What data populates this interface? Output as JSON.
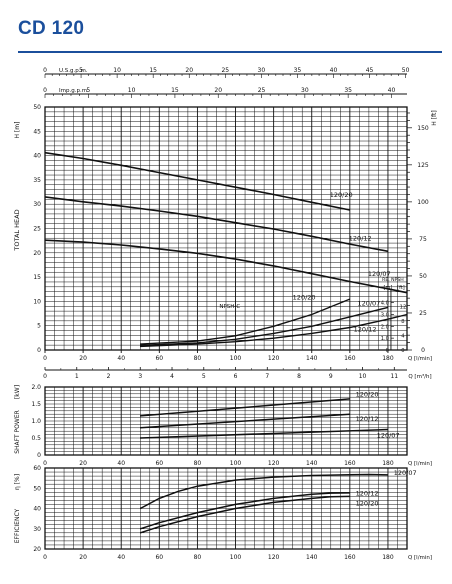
{
  "page": {
    "title": "CD 120"
  },
  "chart_data": [
    {
      "id": "head",
      "type": "line",
      "ylabel": "TOTAL HEAD",
      "yunit_left": "H [m]",
      "yunit_right": "H [ft]",
      "xlabel": "Q [l/min]",
      "xlim": [
        0,
        190
      ],
      "ylim": [
        0,
        50
      ],
      "x_ticks": [
        0,
        20,
        40,
        60,
        80,
        100,
        120,
        140,
        160,
        180
      ],
      "y_ticks": [
        0,
        5,
        10,
        15,
        20,
        25,
        30,
        35,
        40,
        45,
        50
      ],
      "grid": true,
      "right_axis": {
        "label": "H [ft]",
        "factor": 3.2808,
        "ticks": [
          0,
          25,
          50,
          75,
          100,
          125,
          150
        ]
      },
      "top_axes": [
        {
          "label": "U.S.g.p.m.",
          "factor": 0.26417,
          "ticks": [
            0,
            5,
            10,
            15,
            20,
            25,
            30,
            35,
            40,
            45,
            50
          ]
        },
        {
          "label": "Imp.g.p.m.",
          "factor": 0.21997,
          "ticks": [
            0,
            5,
            10,
            15,
            20,
            25,
            30,
            35,
            40
          ]
        }
      ],
      "second_x_axis": {
        "label": "Q [m³/h]",
        "factor": 0.06,
        "ticks": [
          0,
          1,
          2,
          3,
          4,
          5,
          6,
          7,
          8,
          9,
          10,
          11
        ]
      },
      "series": [
        {
          "name": "120/20",
          "x": [
            0,
            20,
            40,
            60,
            80,
            100,
            120,
            140,
            160
          ],
          "y": [
            40.6,
            39.4,
            38,
            36.5,
            35,
            33.5,
            32,
            30.4,
            28.8
          ]
        },
        {
          "name": "120/12",
          "x": [
            0,
            20,
            40,
            60,
            80,
            100,
            120,
            140,
            160,
            180
          ],
          "y": [
            31.5,
            30.5,
            29.6,
            28.6,
            27.5,
            26.2,
            24.9,
            23.4,
            21.8,
            20.3
          ]
        },
        {
          "name": "120/07",
          "x": [
            0,
            20,
            40,
            60,
            80,
            100,
            120,
            140,
            160,
            180,
            190
          ],
          "y": [
            22.6,
            22.2,
            21.6,
            20.8,
            19.9,
            18.7,
            17.3,
            15.7,
            14.1,
            12.6,
            11.8
          ]
        }
      ],
      "npsh": {
        "label": "NPSH-C",
        "axis_label": "RE. NPSH",
        "axis_units": [
          "[m]",
          "[ft]"
        ],
        "ticks_m": [
          0,
          1.0,
          2.0,
          3.0,
          4.0
        ],
        "ticks_ft": [
          0,
          4,
          8,
          12
        ],
        "series": [
          {
            "name": "120/20",
            "x": [
              50,
              80,
              100,
              120,
              140,
              160
            ],
            "y": [
              0.5,
              0.75,
              1.2,
              2.0,
              3.0,
              4.3
            ]
          },
          {
            "name": "120/12",
            "x": [
              50,
              80,
              100,
              120,
              140,
              160,
              180
            ],
            "y": [
              0.4,
              0.6,
              0.9,
              1.4,
              2.0,
              2.8,
              3.6
            ]
          },
          {
            "name": "120/07",
            "x": [
              50,
              80,
              100,
              120,
              140,
              160,
              180,
              190
            ],
            "y": [
              0.3,
              0.5,
              0.7,
              1.0,
              1.4,
              1.9,
              2.6,
              3.0
            ]
          }
        ]
      }
    },
    {
      "id": "power",
      "type": "line",
      "ylabel": "SHAFT POWER",
      "yunit": "[kW]",
      "xlabel": "Q [l/min]",
      "xlim": [
        0,
        190
      ],
      "ylim": [
        0,
        2.0
      ],
      "y_ticks": [
        0,
        0.5,
        1.0,
        1.5,
        2.0
      ],
      "y_tick_labels": [
        "0",
        "0.5",
        "1.0",
        "1.5",
        "2.0"
      ],
      "grid": true,
      "series": [
        {
          "name": "120/20",
          "x": [
            50,
            160
          ],
          "y": [
            1.15,
            1.65
          ]
        },
        {
          "name": "120/12",
          "x": [
            50,
            160
          ],
          "y": [
            0.8,
            1.2
          ]
        },
        {
          "name": "120/07",
          "x": [
            50,
            180
          ],
          "y": [
            0.5,
            0.75
          ]
        }
      ]
    },
    {
      "id": "efficiency",
      "type": "line",
      "ylabel": "EFFICIENCY",
      "yunit": "η [%]",
      "xlabel": "Q [l/min]",
      "xlim": [
        0,
        190
      ],
      "ylim": [
        20,
        60
      ],
      "y_ticks": [
        20,
        30,
        40,
        50,
        60
      ],
      "grid": true,
      "series": [
        {
          "name": "120/07",
          "x": [
            50,
            60,
            70,
            80,
            100,
            120,
            140,
            160,
            170,
            180
          ],
          "y": [
            40,
            45,
            48.5,
            51,
            54,
            55.5,
            56.3,
            56.7,
            56.8,
            56.6
          ]
        },
        {
          "name": "120/12",
          "x": [
            50,
            60,
            80,
            100,
            120,
            140,
            150,
            160
          ],
          "y": [
            30,
            33,
            38,
            42,
            45,
            47,
            47.6,
            47.7
          ]
        },
        {
          "name": "120/20",
          "x": [
            50,
            60,
            80,
            100,
            120,
            140,
            150,
            160
          ],
          "y": [
            28,
            31,
            36,
            40,
            43,
            45,
            45.8,
            46
          ]
        }
      ]
    }
  ]
}
